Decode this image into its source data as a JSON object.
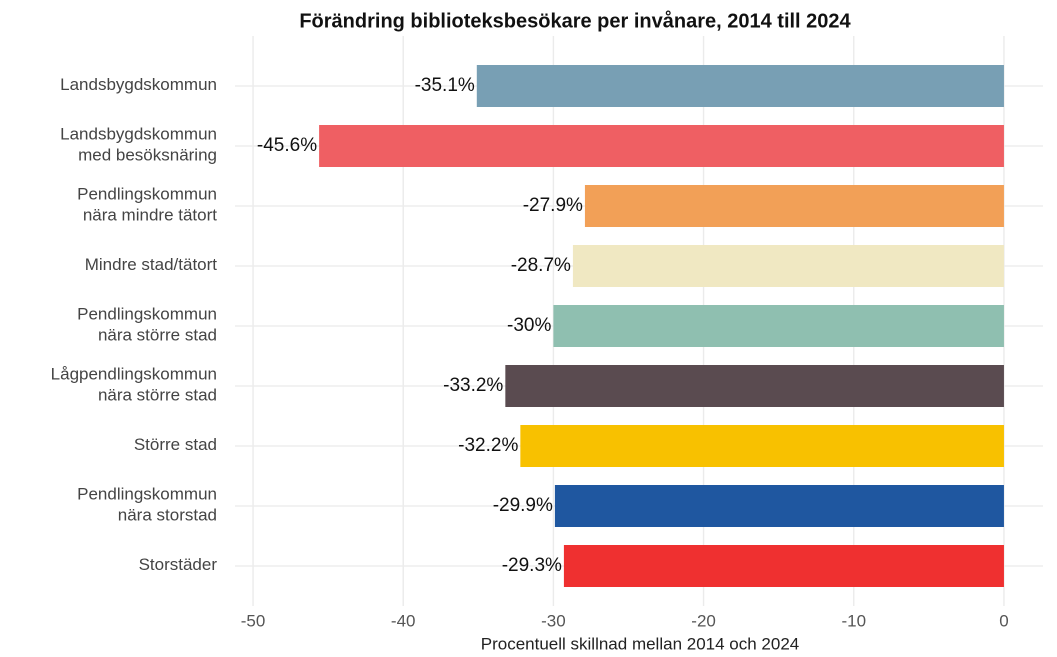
{
  "chart_data": {
    "type": "hbar",
    "title": "Förändring biblioteksbesökare per invånare, 2014 till 2024",
    "x_label": "Procentuell skillnad mellan 2014 och 2024",
    "categories": [
      "Landsbygdskommun",
      "Landsbygdskommun\nmed besöksnäring",
      "Pendlingskommun\nnära mindre tätort",
      "Mindre stad/tätort",
      "Pendlingskommun\nnära större stad",
      "Lågpendlingskommun\nnära större stad",
      "Större stad",
      "Pendlingskommun\nnära storstad",
      "Storstäder"
    ],
    "values": [
      -35.1,
      -45.6,
      -27.9,
      -28.7,
      -30,
      -33.2,
      -32.2,
      -29.9,
      -29.3
    ],
    "value_labels": [
      "-35.1%",
      "-45.6%",
      "-27.9%",
      "-28.7%",
      "-30%",
      "-33.2%",
      "-32.2%",
      "-29.9%",
      "-29.3%"
    ],
    "colors": [
      "#789fb4",
      "#ef5f63",
      "#f2a057",
      "#f0e8c2",
      "#8fbfb0",
      "#5a4b50",
      "#f8c100",
      "#1f57a0",
      "#ef3030"
    ],
    "xlim": [
      -51.2,
      2.6
    ],
    "xticks": [
      -50,
      -40,
      -30,
      -20,
      -10,
      0
    ],
    "grid": true
  }
}
